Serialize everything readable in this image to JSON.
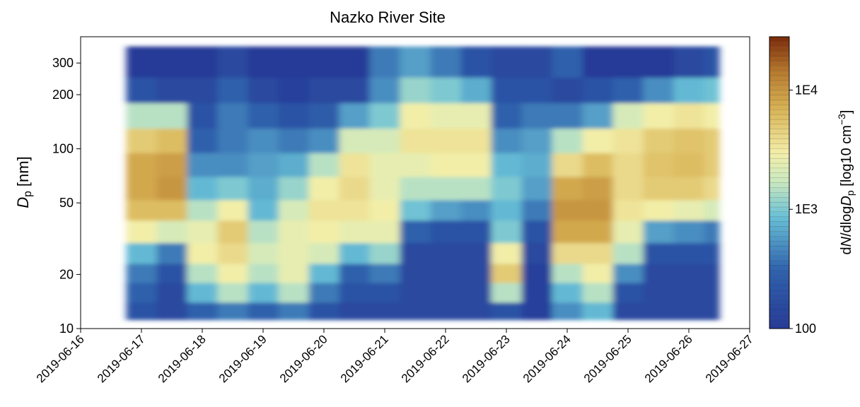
{
  "chart_data": {
    "type": "heatmap",
    "title": "Nazko River Site",
    "ylabel": [
      {
        "text": "D",
        "style": "italic"
      },
      {
        "text": "p",
        "style": "sub"
      },
      {
        "text": " [nm]",
        "style": "normal"
      }
    ],
    "colorbar_label": [
      {
        "text": "d",
        "style": "normal"
      },
      {
        "text": "N",
        "style": "italic"
      },
      {
        "text": "/dlog",
        "style": "normal"
      },
      {
        "text": "D",
        "style": "italic"
      },
      {
        "text": "p",
        "style": "sub"
      },
      {
        "text": " [log10 cm",
        "style": "normal"
      },
      {
        "text": "−3",
        "style": "sup"
      },
      {
        "text": "]",
        "style": "normal"
      }
    ],
    "xlim": [
      "2019-06-16",
      "2019-06-27"
    ],
    "xticks": [
      "2019-06-16",
      "2019-06-17",
      "2019-06-18",
      "2019-06-19",
      "2019-06-20",
      "2019-06-21",
      "2019-06-22",
      "2019-06-23",
      "2019-06-24",
      "2019-06-25",
      "2019-06-26",
      "2019-06-27"
    ],
    "ylim": [
      10,
      420
    ],
    "yscale": "log",
    "yticks": [
      10,
      20,
      50,
      100,
      200,
      300
    ],
    "zlim": [
      100,
      28000
    ],
    "zscale": "log",
    "zticks": [
      100,
      {
        "value": 1000,
        "label": "1E3"
      },
      {
        "value": 10000,
        "label": "1E4"
      }
    ],
    "colormap": [
      "#263a97",
      "#2f62ad",
      "#67bfd6",
      "#c8e8c0",
      "#f3efaa",
      "#d9b455",
      "#b77a2e",
      "#7a2a0a"
    ],
    "colormap_stops": [
      0,
      0.2,
      0.38,
      0.5,
      0.6,
      0.75,
      0.88,
      1
    ],
    "x_edges": [
      "2019-06-16 18:00",
      "2019-06-17 06:00",
      "2019-06-17 18:00",
      "2019-06-18 06:00",
      "2019-06-18 18:00",
      "2019-06-19 06:00",
      "2019-06-19 18:00",
      "2019-06-20 06:00",
      "2019-06-20 18:00",
      "2019-06-21 06:00",
      "2019-06-21 18:00",
      "2019-06-22 06:00",
      "2019-06-22 18:00",
      "2019-06-23 06:00",
      "2019-06-23 18:00",
      "2019-06-24 06:00",
      "2019-06-24 18:00",
      "2019-06-25 06:00",
      "2019-06-25 18:00",
      "2019-06-26 06:00",
      "2019-06-26 12:00"
    ],
    "y_edges": [
      11.2,
      14,
      18,
      23,
      30,
      40,
      52,
      70,
      95,
      130,
      180,
      250,
      371
    ],
    "z": [
      [
        200,
        300,
        400,
        800,
        3000,
        6000,
        8000,
        8000,
        5000,
        1500,
        200,
        100
      ],
      [
        150,
        150,
        200,
        400,
        2000,
        6000,
        10000,
        9000,
        6000,
        1500,
        150,
        100
      ],
      [
        300,
        800,
        1500,
        3000,
        2500,
        1500,
        800,
        500,
        300,
        200,
        150,
        100
      ],
      [
        400,
        1500,
        3000,
        4000,
        5000,
        3000,
        1000,
        500,
        400,
        400,
        300,
        150
      ],
      [
        300,
        800,
        1500,
        2000,
        1500,
        800,
        700,
        600,
        500,
        300,
        150,
        100
      ],
      [
        400,
        1500,
        2500,
        2500,
        2500,
        2000,
        1200,
        700,
        400,
        200,
        120,
        100
      ],
      [
        200,
        400,
        800,
        2000,
        3000,
        3500,
        3000,
        1500,
        500,
        250,
        150,
        100
      ],
      [
        150,
        200,
        300,
        800,
        2500,
        3500,
        4000,
        3500,
        2000,
        600,
        150,
        100
      ],
      [
        150,
        200,
        400,
        1200,
        2500,
        3000,
        2500,
        2500,
        2000,
        1000,
        500,
        400
      ],
      [
        150,
        150,
        150,
        150,
        300,
        900,
        1500,
        2500,
        3500,
        3000,
        1200,
        600
      ],
      [
        150,
        150,
        150,
        150,
        200,
        600,
        1500,
        3000,
        3500,
        2500,
        1000,
        400
      ],
      [
        150,
        150,
        150,
        150,
        200,
        500,
        1500,
        3000,
        3500,
        2500,
        700,
        200
      ],
      [
        200,
        1500,
        5000,
        3000,
        1000,
        800,
        1000,
        800,
        500,
        300,
        200,
        150
      ],
      [
        120,
        120,
        120,
        150,
        200,
        400,
        600,
        700,
        600,
        400,
        200,
        150
      ],
      [
        500,
        800,
        1500,
        4000,
        8000,
        10000,
        8000,
        4000,
        1500,
        400,
        150,
        300
      ],
      [
        800,
        1500,
        3000,
        4000,
        8000,
        10000,
        9000,
        6000,
        3000,
        600,
        200,
        100
      ],
      [
        150,
        200,
        500,
        1500,
        2500,
        3500,
        4000,
        4000,
        3500,
        2000,
        300,
        100
      ],
      [
        150,
        150,
        150,
        200,
        600,
        3000,
        5000,
        5500,
        5000,
        3000,
        500,
        100
      ],
      [
        150,
        150,
        150,
        200,
        500,
        2500,
        5000,
        6000,
        5500,
        3500,
        800,
        150
      ],
      [
        150,
        150,
        150,
        200,
        400,
        2000,
        4000,
        5000,
        5000,
        3000,
        900,
        200
      ]
    ]
  }
}
